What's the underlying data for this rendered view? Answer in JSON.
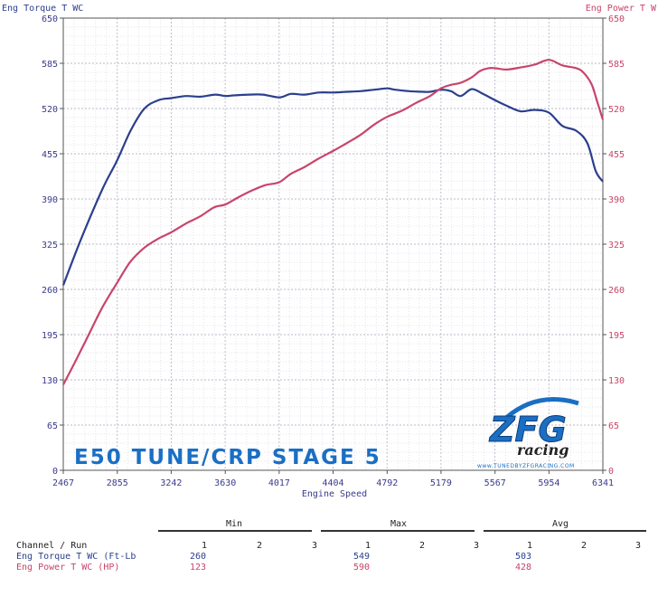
{
  "colors": {
    "torque": "#2b3f8c",
    "power": "#c8456a",
    "grid": "#b8b8c8",
    "axis_text": "#3a3a8c",
    "logo_blue": "#1a6fc4"
  },
  "chart_data": {
    "type": "line",
    "left_axis_title": "Eng Torque T WC",
    "right_axis_title": "Eng Power T W",
    "xlabel": "Engine Speed",
    "xlim": [
      2467,
      6341
    ],
    "ylim": [
      0,
      650
    ],
    "x_ticks": [
      "2467",
      "2855",
      "3242",
      "3630",
      "4017",
      "4404",
      "4792",
      "5179",
      "5567",
      "5954",
      "6341"
    ],
    "y_ticks": [
      "0",
      "65",
      "130",
      "195",
      "260",
      "325",
      "390",
      "455",
      "520",
      "585",
      "650"
    ],
    "grid": true,
    "series": [
      {
        "name": "Eng Torque T WC",
        "axis": "left",
        "color": "#2b3f8c",
        "x": [
          2467,
          2600,
          2750,
          2855,
          2950,
          3050,
          3150,
          3242,
          3350,
          3450,
          3560,
          3630,
          3700,
          3800,
          3900,
          4017,
          4100,
          4200,
          4300,
          4404,
          4500,
          4600,
          4700,
          4792,
          4850,
          4950,
          5050,
          5100,
          5179,
          5250,
          5320,
          5400,
          5480,
          5567,
          5650,
          5750,
          5850,
          5954,
          6050,
          6150,
          6230,
          6290,
          6341
        ],
        "values": [
          266,
          335,
          405,
          446,
          488,
          520,
          532,
          535,
          538,
          537,
          540,
          538,
          539,
          540,
          540,
          536,
          541,
          540,
          543,
          543,
          544,
          545,
          547,
          549,
          547,
          545,
          544,
          544,
          547,
          545,
          538,
          548,
          541,
          532,
          524,
          516,
          518,
          514,
          495,
          488,
          470,
          430,
          415
        ]
      },
      {
        "name": "Eng Power T WC",
        "axis": "right",
        "color": "#c8456a",
        "x": [
          2467,
          2550,
          2650,
          2750,
          2855,
          2950,
          3050,
          3150,
          3242,
          3350,
          3450,
          3550,
          3630,
          3720,
          3820,
          3920,
          4017,
          4100,
          4200,
          4300,
          4404,
          4500,
          4600,
          4700,
          4792,
          4900,
          5000,
          5100,
          5179,
          5250,
          5320,
          5400,
          5460,
          5520,
          5567,
          5650,
          5750,
          5850,
          5954,
          6050,
          6150,
          6200,
          6260,
          6300,
          6341
        ],
        "values": [
          123,
          155,
          195,
          235,
          270,
          300,
          320,
          333,
          342,
          355,
          365,
          378,
          382,
          392,
          402,
          410,
          414,
          426,
          436,
          448,
          459,
          470,
          482,
          497,
          508,
          517,
          528,
          538,
          549,
          554,
          557,
          565,
          574,
          578,
          578,
          576,
          579,
          583,
          590,
          582,
          578,
          572,
          555,
          530,
          504
        ]
      }
    ]
  },
  "annotation": "E50 TUNE/CRP STAGE 5",
  "logo": {
    "main": "ZFG",
    "sub": "racing",
    "url": "www.TUNEDBYZFGRACING.COM"
  },
  "stats": {
    "groups": [
      "Min",
      "Max",
      "Avg"
    ],
    "channel_header": "Channel / Run",
    "run_numbers": [
      "1",
      "2",
      "3"
    ],
    "rows": [
      {
        "label": "Eng Torque T WC (Ft-Lb",
        "min": "260",
        "max": "549",
        "avg": "503"
      },
      {
        "label": "Eng Power T WC (HP)",
        "min": "123",
        "max": "590",
        "avg": "428"
      }
    ]
  }
}
